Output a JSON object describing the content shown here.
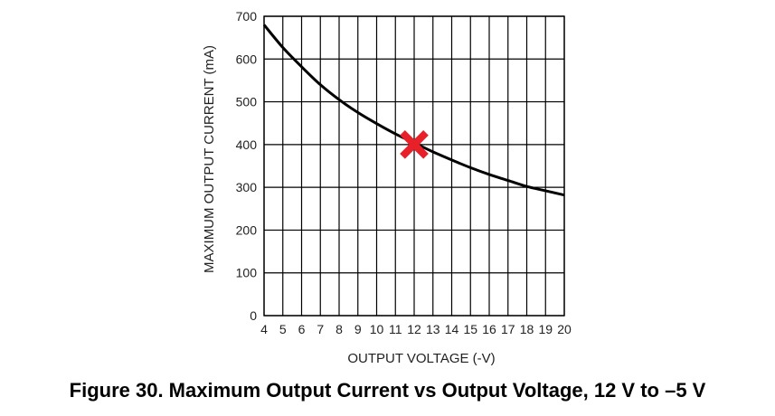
{
  "caption": "Figure 30.  Maximum Output Current vs Output Voltage, 12 V to –5 V",
  "chart_data": {
    "type": "line",
    "xlabel": "OUTPUT VOLTAGE (-V)",
    "ylabel": "MAXIMUM OUTPUT CURRENT (mA)",
    "xlim": [
      4,
      20
    ],
    "ylim": [
      0,
      700
    ],
    "xticks": [
      4,
      5,
      6,
      7,
      8,
      9,
      10,
      11,
      12,
      13,
      14,
      15,
      16,
      17,
      18,
      19,
      20
    ],
    "yticks": [
      0,
      100,
      200,
      300,
      400,
      500,
      600,
      700
    ],
    "grid": true,
    "series": [
      {
        "x": [
          4,
          5,
          6,
          7,
          8,
          9,
          10,
          11,
          12,
          13,
          14,
          15,
          16,
          17,
          18,
          19,
          20
        ],
        "y": [
          680,
          627,
          582,
          540,
          505,
          475,
          449,
          425,
          404,
          383,
          364,
          346,
          330,
          316,
          302,
          292,
          282
        ],
        "color": "#000000"
      }
    ],
    "annotations": [
      {
        "type": "x-marker",
        "x": 12,
        "y": 400,
        "color": "#e8202a"
      }
    ]
  }
}
